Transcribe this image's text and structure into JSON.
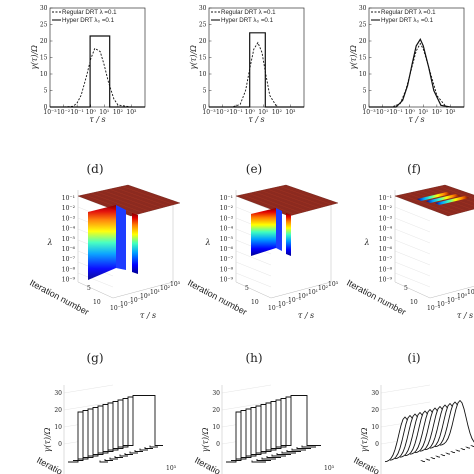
{
  "panel_labels": [
    "(d)",
    "(e)",
    "(f)",
    "(g)",
    "(h)",
    "(i)"
  ],
  "axis_labels": {
    "gamma": "γ(τ)/Ω",
    "tau": "τ / s",
    "lambda": "λ",
    "iteration": "Iteration number"
  },
  "legend": {
    "regular": "Regular DRT λ =0.1",
    "hyper": "Hyper DRT λ₀ =0.1"
  },
  "row1_ticks": {
    "y": [
      "0",
      "5",
      "10",
      "15",
      "20",
      "25",
      "30"
    ],
    "x": [
      "10⁻³",
      "10⁻²",
      "10⁻¹",
      "10⁰",
      "10¹",
      "10²",
      "10³"
    ]
  },
  "surface_ticks": {
    "lambda": [
      "10⁻¹",
      "10⁻²",
      "10⁻³",
      "10⁻⁴",
      "10⁻⁵",
      "10⁻⁶",
      "10⁻⁷",
      "10⁻⁸",
      "10⁻⁹"
    ],
    "iteration": [
      "5",
      "10"
    ],
    "tau": [
      "10⁻³",
      "10⁻²",
      "10⁻¹",
      "10⁰",
      "10¹",
      "10²",
      "10³"
    ]
  },
  "row3_ticks": {
    "y": [
      "0",
      "10",
      "20",
      "30"
    ],
    "x": [
      "10³"
    ],
    "iter_partial": "Iteratio"
  },
  "colors": {
    "surface_top": "#8c2a1f",
    "surface_top_light": "#a23423",
    "jet": [
      "#00008f",
      "#0000ff",
      "#00a0ff",
      "#3fffbf",
      "#ffff00",
      "#ff8000",
      "#e00000",
      "#800000"
    ]
  },
  "chart_data": [
    {
      "type": "line",
      "panel": "a",
      "xscale": "log",
      "xlim": [
        0.001,
        10000
      ],
      "ylim": [
        0,
        30
      ],
      "series": [
        {
          "name": "Regular DRT λ =0.1",
          "style": "dashed",
          "x": [
            0.001,
            0.01,
            0.05,
            0.1,
            0.2,
            0.5,
            1,
            2,
            5,
            10,
            20,
            50,
            100,
            1000,
            10000
          ],
          "y": [
            0,
            0,
            0.2,
            1.2,
            3.6,
            9.5,
            14.5,
            17.8,
            16.8,
            12.6,
            7.6,
            2.5,
            0.6,
            0,
            0
          ]
        },
        {
          "name": "Hyper DRT λ₀ =0.1",
          "style": "solid",
          "x": [
            0.001,
            0.9,
            0.9,
            25,
            25,
            10000
          ],
          "y": [
            0,
            0,
            21.5,
            21.5,
            0,
            0
          ]
        }
      ]
    },
    {
      "type": "line",
      "panel": "b",
      "xscale": "log",
      "xlim": [
        0.001,
        10000
      ],
      "ylim": [
        0,
        30
      ],
      "series": [
        {
          "name": "Regular DRT λ =0.1",
          "style": "dashed",
          "x": [
            0.001,
            0.05,
            0.2,
            0.5,
            1,
            2,
            4,
            8,
            15,
            30,
            100,
            1000,
            10000
          ],
          "y": [
            0,
            0,
            0.8,
            5,
            11.5,
            17.5,
            19.5,
            16.5,
            10,
            3.5,
            0,
            0,
            0
          ]
        },
        {
          "name": "Hyper DRT λ₀ =0.1",
          "style": "solid",
          "x": [
            0.001,
            1,
            1,
            14,
            14,
            10000
          ],
          "y": [
            0,
            0,
            22.5,
            22.5,
            0,
            0
          ]
        }
      ]
    },
    {
      "type": "line",
      "panel": "c",
      "xscale": "log",
      "xlim": [
        0.001,
        10000
      ],
      "ylim": [
        0,
        30
      ],
      "series": [
        {
          "name": "Regular DRT λ =0.1",
          "style": "dashed",
          "x": [
            0.001,
            0.05,
            0.2,
            0.5,
            1,
            3,
            6,
            10,
            30,
            100,
            500,
            1000,
            10000
          ],
          "y": [
            0,
            0,
            1,
            5,
            9.5,
            17,
            19.2,
            17.5,
            11,
            3.5,
            0,
            0,
            0
          ]
        },
        {
          "name": "Hyper DRT λ₀ =0.1",
          "style": "solid",
          "x": [
            0.001,
            0.1,
            0.3,
            0.7,
            1.5,
            3,
            6,
            10,
            25,
            60,
            200,
            1000,
            10000
          ],
          "y": [
            0,
            0,
            2,
            6.5,
            13,
            18.5,
            20.5,
            18.5,
            12,
            5,
            0.5,
            0,
            0
          ]
        }
      ]
    },
    {
      "type": "heatmap",
      "panel": "d",
      "surface": "3d"
    },
    {
      "type": "heatmap",
      "panel": "e",
      "surface": "3d"
    },
    {
      "type": "heatmap",
      "panel": "f",
      "surface": "3d"
    }
  ]
}
